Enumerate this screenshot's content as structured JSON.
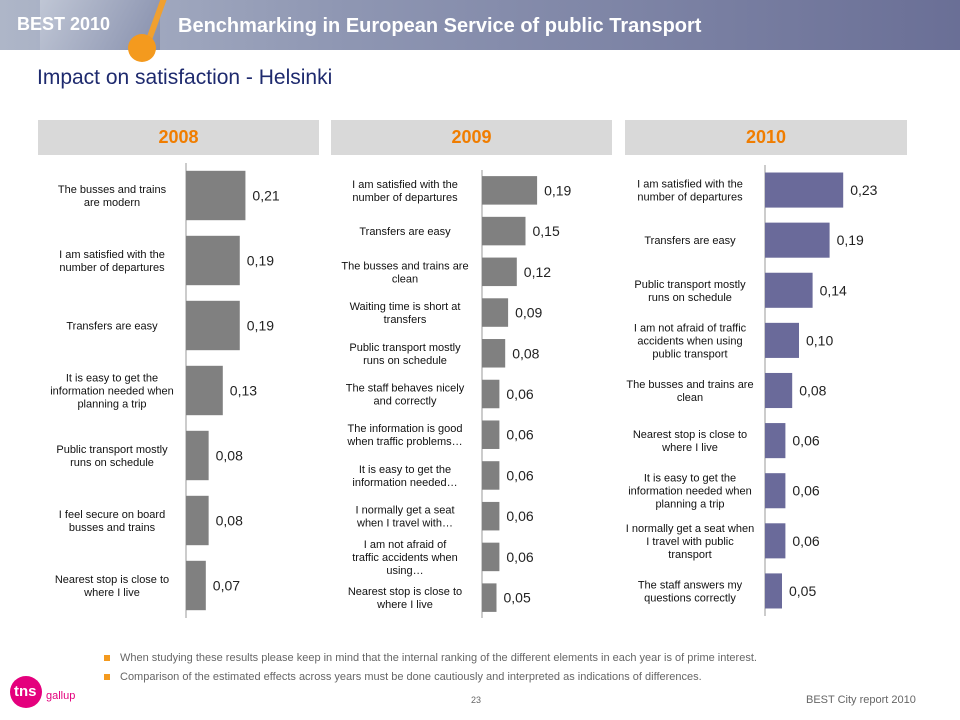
{
  "header": {
    "best_label": "BEST 2010",
    "title": "Benchmarking in European Service of public Transport"
  },
  "page_title": "Impact on satisfaction - Helsinki",
  "colors": {
    "year_header_text": "#f07d00",
    "year_header_bg": "#d9d9d9",
    "bar_grey": "#808080",
    "bar_purple": "#6a6a9a",
    "accent_orange": "#f49a1e",
    "title_blue": "#1e2a6e"
  },
  "chart_data": [
    {
      "type": "bar",
      "orientation": "horizontal",
      "title": "2008",
      "categories": [
        "The busses and trains are modern",
        "I am satisfied with the number of departures",
        "Transfers are easy",
        "It is easy to get the information needed when planning a trip",
        "Public transport mostly runs on schedule",
        "I feel secure on board busses and trains",
        "Nearest stop is close to where I live"
      ],
      "values": [
        0.21,
        0.19,
        0.19,
        0.13,
        0.08,
        0.08,
        0.07
      ],
      "value_labels": [
        "0,21",
        "0,19",
        "0,19",
        "0,13",
        "0,08",
        "0,08",
        "0,07"
      ],
      "color": "#808080"
    },
    {
      "type": "bar",
      "orientation": "horizontal",
      "title": "2009",
      "categories": [
        "I am satisfied with the number of departures",
        "Transfers are easy",
        "The busses and trains are clean",
        "Waiting time is short at transfers",
        "Public transport mostly runs on schedule",
        "The staff behaves nicely and correctly",
        "The information is good when traffic problems…",
        "It is easy to get the information needed…",
        "I normally get a seat when I travel with…",
        "I am not afraid of traffic accidents when using…",
        "Nearest stop is close to where I live"
      ],
      "values": [
        0.19,
        0.15,
        0.12,
        0.09,
        0.08,
        0.06,
        0.06,
        0.06,
        0.06,
        0.06,
        0.05
      ],
      "value_labels": [
        "0,19",
        "0,15",
        "0,12",
        "0,09",
        "0,08",
        "0,06",
        "0,06",
        "0,06",
        "0,06",
        "0,06",
        "0,05"
      ],
      "color": "#808080"
    },
    {
      "type": "bar",
      "orientation": "horizontal",
      "title": "2010",
      "categories": [
        "I am satisfied with the number of departures",
        "Transfers are easy",
        "Public transport mostly runs on schedule",
        "I am not afraid of traffic accidents when using public transport",
        "The busses and trains are clean",
        "Nearest stop is close to where I live",
        "It is easy to get the information needed when planning a trip",
        "I normally get a seat when I travel with public transport",
        "The staff answers my questions correctly"
      ],
      "values": [
        0.23,
        0.19,
        0.14,
        0.1,
        0.08,
        0.06,
        0.06,
        0.06,
        0.05
      ],
      "value_labels": [
        "0,23",
        "0,19",
        "0,14",
        "0,10",
        "0,08",
        "0,06",
        "0,06",
        "0,06",
        "0,05"
      ],
      "color": "#6a6a9a"
    }
  ],
  "footnotes": [
    "When studying these results please keep in mind that the internal ranking of the different elements in each year is of prime interest.",
    "Comparison of the  estimated effects across years must be done cautiously and  interpreted as indications of differences."
  ],
  "footer": {
    "logo_tns": "tns",
    "logo_gallup": "gallup",
    "page_number": "23",
    "report": "BEST City report 2010"
  }
}
